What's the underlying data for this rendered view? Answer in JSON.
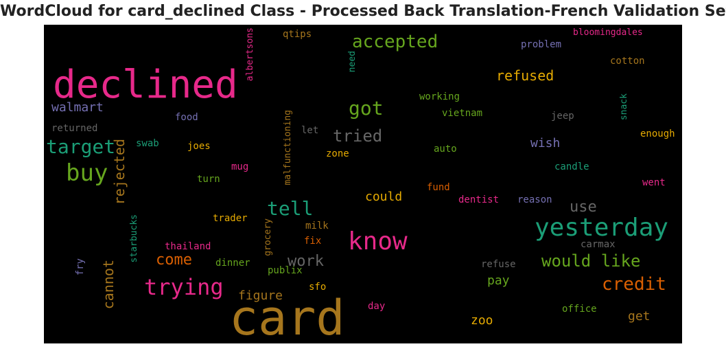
{
  "chart_data": {
    "type": "wordcloud",
    "title": "WordCloud for card_declined Class - Processed Back Translation-French Validation Set",
    "background": "#000000",
    "colormap": "Dark2",
    "words": [
      {
        "text": "card",
        "color": "#a6761d"
      },
      {
        "text": "declined",
        "color": "#e7298a"
      },
      {
        "text": "yesterday",
        "color": "#1b9e77"
      },
      {
        "text": "know",
        "color": "#e7298a"
      },
      {
        "text": "accepted",
        "color": "#66a61e"
      },
      {
        "text": "trying",
        "color": "#e7298a"
      },
      {
        "text": "buy",
        "color": "#66a61e"
      },
      {
        "text": "target",
        "color": "#1b9e77"
      },
      {
        "text": "got",
        "color": "#66a61e"
      },
      {
        "text": "tell",
        "color": "#1b9e77"
      },
      {
        "text": "credit",
        "color": "#d95f02"
      },
      {
        "text": "would like",
        "color": "#66a61e"
      },
      {
        "text": "tried",
        "color": "#666666"
      },
      {
        "text": "refused",
        "color": "#e6ab02"
      },
      {
        "text": "work",
        "color": "#666666"
      },
      {
        "text": "come",
        "color": "#d95f02"
      },
      {
        "text": "use",
        "color": "#666666"
      },
      {
        "text": "cannot",
        "color": "#a6761d"
      },
      {
        "text": "rejected",
        "color": "#a6761d"
      },
      {
        "text": "walmart",
        "color": "#7570b3"
      },
      {
        "text": "could",
        "color": "#e6ab02"
      },
      {
        "text": "figure",
        "color": "#a6761d"
      },
      {
        "text": "pay",
        "color": "#66a61e"
      },
      {
        "text": "wish",
        "color": "#7570b3"
      },
      {
        "text": "zoo",
        "color": "#e6ab02"
      },
      {
        "text": "get",
        "color": "#a6761d"
      },
      {
        "text": "bloomingdales",
        "color": "#e7298a"
      },
      {
        "text": "qtips",
        "color": "#a6761d"
      },
      {
        "text": "albertsons",
        "color": "#e7298a"
      },
      {
        "text": "problem",
        "color": "#7570b3"
      },
      {
        "text": "cotton",
        "color": "#a6761d"
      },
      {
        "text": "need",
        "color": "#1b9e77"
      },
      {
        "text": "working",
        "color": "#66a61e"
      },
      {
        "text": "snack",
        "color": "#1b9e77"
      },
      {
        "text": "food",
        "color": "#7570b3"
      },
      {
        "text": "vietnam",
        "color": "#66a61e"
      },
      {
        "text": "jeep",
        "color": "#666666"
      },
      {
        "text": "returned",
        "color": "#666666"
      },
      {
        "text": "malfunctioning",
        "color": "#a6761d"
      },
      {
        "text": "let",
        "color": "#666666"
      },
      {
        "text": "enough",
        "color": "#e6ab02"
      },
      {
        "text": "swab",
        "color": "#1b9e77"
      },
      {
        "text": "joes",
        "color": "#e6ab02"
      },
      {
        "text": "zone",
        "color": "#e6ab02"
      },
      {
        "text": "auto",
        "color": "#66a61e"
      },
      {
        "text": "candle",
        "color": "#1b9e77"
      },
      {
        "text": "mug",
        "color": "#e7298a"
      },
      {
        "text": "turn",
        "color": "#66a61e"
      },
      {
        "text": "fund",
        "color": "#d95f02"
      },
      {
        "text": "went",
        "color": "#e7298a"
      },
      {
        "text": "dentist",
        "color": "#e7298a"
      },
      {
        "text": "reason",
        "color": "#7570b3"
      },
      {
        "text": "starbucks",
        "color": "#1b9e77"
      },
      {
        "text": "trader",
        "color": "#e6ab02"
      },
      {
        "text": "milk",
        "color": "#a6761d"
      },
      {
        "text": "grocery",
        "color": "#a6761d"
      },
      {
        "text": "thailand",
        "color": "#e7298a"
      },
      {
        "text": "fix",
        "color": "#d95f02"
      },
      {
        "text": "carmax",
        "color": "#666666"
      },
      {
        "text": "fry",
        "color": "#7570b3"
      },
      {
        "text": "dinner",
        "color": "#66a61e"
      },
      {
        "text": "publix",
        "color": "#66a61e"
      },
      {
        "text": "refuse",
        "color": "#666666"
      },
      {
        "text": "sfo",
        "color": "#e6ab02"
      },
      {
        "text": "day",
        "color": "#e7298a"
      },
      {
        "text": "office",
        "color": "#66a61e"
      }
    ]
  }
}
